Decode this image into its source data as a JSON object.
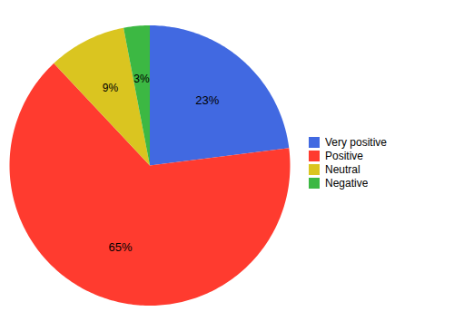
{
  "chart_data": {
    "type": "pie",
    "categories": [
      "Very positive",
      "Positive",
      "Neutral",
      "Negative"
    ],
    "values": [
      23,
      65,
      9,
      3
    ],
    "value_labels": [
      "23%",
      "65%",
      "9%",
      "3%"
    ],
    "colors": [
      "#4169E1",
      "#FF3B2F",
      "#DAC520",
      "#3CB843"
    ],
    "data_labels": true,
    "legend": "right"
  }
}
